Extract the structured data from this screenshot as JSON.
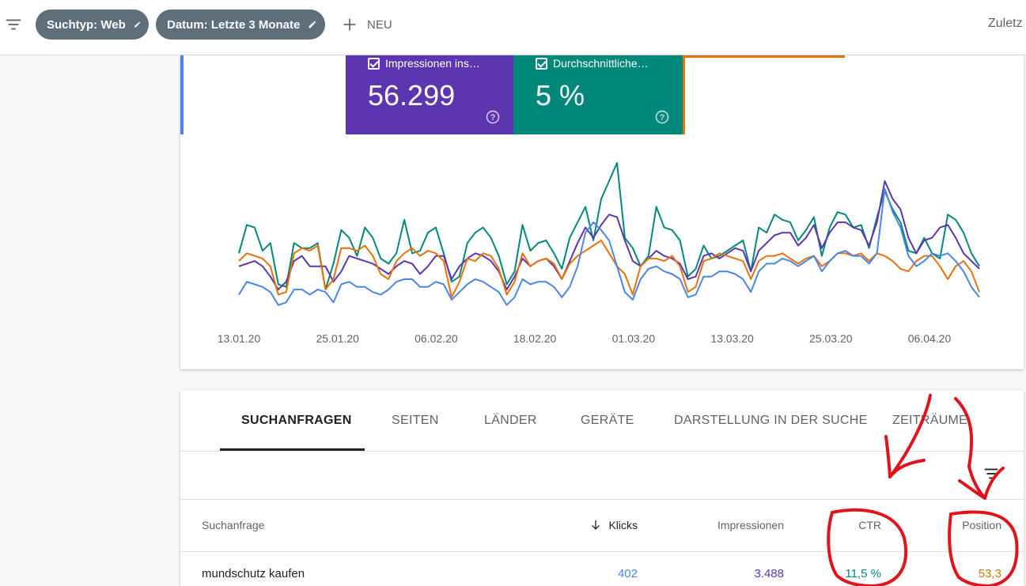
{
  "toolbar": {
    "chips": [
      {
        "label": "Suchtyp: Web"
      },
      {
        "label": "Datum: Letzte 3 Monate"
      }
    ],
    "new_label": "NEU",
    "right_label": "Zuletz",
    "icons": [
      "filter-icon",
      "edit-icon",
      "add-icon"
    ]
  },
  "metrics": [
    {
      "label": "Impressionen ins…",
      "value": "56.299",
      "color": "#5e35b1",
      "checked": true
    },
    {
      "label": "Durchschnittliche…",
      "value": "5 %",
      "color": "#00897b",
      "checked": true
    }
  ],
  "chart_data": {
    "type": "line",
    "x_tick_labels": [
      "13.01.20",
      "25.01.20",
      "06.02.20",
      "18.02.20",
      "01.03.20",
      "13.03.20",
      "25.03.20",
      "06.04.20"
    ],
    "series": [
      {
        "color": "#00897b",
        "values": [
          50,
          72,
          70,
          52,
          58,
          26,
          24,
          58,
          54,
          54,
          58,
          22,
          42,
          68,
          62,
          48,
          70,
          62,
          46,
          42,
          50,
          76,
          50,
          52,
          66,
          70,
          50,
          28,
          32,
          58,
          66,
          70,
          62,
          48,
          26,
          36,
          72,
          52,
          58,
          60,
          50,
          38,
          62,
          74,
          86,
          60,
          92,
          106,
          120,
          62,
          54,
          40,
          48,
          86,
          70,
          68,
          60,
          32,
          38,
          56,
          46,
          48,
          52,
          56,
          60,
          36,
          70,
          66,
          80,
          76,
          74,
          60,
          68,
          78,
          48,
          70,
          82,
          80,
          70,
          72,
          54,
          78,
          98,
          84,
          74,
          52,
          50,
          62,
          50,
          46,
          80,
          76,
          66,
          50,
          40
        ]
      },
      {
        "color": "#5e35b1",
        "values": [
          40,
          42,
          44,
          40,
          32,
          22,
          28,
          44,
          48,
          40,
          40,
          40,
          28,
          36,
          48,
          46,
          44,
          42,
          38,
          34,
          40,
          44,
          42,
          34,
          40,
          48,
          48,
          30,
          40,
          46,
          50,
          48,
          44,
          36,
          22,
          32,
          46,
          40,
          44,
          46,
          40,
          30,
          44,
          58,
          70,
          62,
          72,
          80,
          78,
          60,
          44,
          40,
          46,
          52,
          48,
          46,
          42,
          30,
          32,
          48,
          50,
          46,
          50,
          54,
          52,
          36,
          52,
          58,
          64,
          66,
          66,
          56,
          62,
          72,
          54,
          66,
          74,
          74,
          70,
          68,
          56,
          74,
          106,
          92,
          84,
          62,
          50,
          60,
          62,
          70,
          72,
          62,
          50,
          44,
          38
        ]
      },
      {
        "color": "#e8710a",
        "values": [
          44,
          50,
          48,
          46,
          40,
          18,
          20,
          50,
          54,
          52,
          56,
          22,
          30,
          54,
          54,
          52,
          56,
          48,
          34,
          30,
          44,
          50,
          54,
          48,
          52,
          50,
          44,
          16,
          28,
          46,
          44,
          50,
          48,
          38,
          18,
          28,
          50,
          40,
          44,
          46,
          42,
          30,
          42,
          48,
          52,
          56,
          60,
          50,
          40,
          34,
          18,
          40,
          46,
          46,
          44,
          48,
          40,
          20,
          24,
          44,
          46,
          50,
          48,
          46,
          44,
          30,
          44,
          48,
          48,
          50,
          46,
          42,
          46,
          48,
          40,
          44,
          50,
          50,
          48,
          50,
          44,
          50,
          48,
          44,
          38,
          36,
          44,
          48,
          48,
          40,
          30,
          40,
          44,
          36,
          20
        ]
      },
      {
        "color": "#4a86e8",
        "values": [
          18,
          28,
          26,
          24,
          20,
          10,
          12,
          22,
          22,
          18,
          22,
          20,
          12,
          26,
          28,
          24,
          24,
          20,
          18,
          22,
          28,
          30,
          30,
          24,
          24,
          28,
          26,
          14,
          20,
          26,
          30,
          28,
          24,
          20,
          10,
          16,
          30,
          26,
          28,
          28,
          24,
          16,
          24,
          40,
          66,
          74,
          68,
          60,
          40,
          20,
          14,
          30,
          38,
          40,
          36,
          34,
          30,
          16,
          18,
          32,
          32,
          36,
          36,
          34,
          30,
          20,
          36,
          42,
          42,
          46,
          44,
          40,
          44,
          48,
          36,
          44,
          50,
          52,
          48,
          48,
          42,
          50,
          100,
          82,
          70,
          48,
          40,
          44,
          50,
          48,
          50,
          44,
          36,
          24,
          16
        ]
      }
    ],
    "ylim": [
      0,
      120
    ]
  },
  "tabs": [
    {
      "label": "SUCHANFRAGEN",
      "active": true
    },
    {
      "label": "SEITEN"
    },
    {
      "label": "LÄNDER"
    },
    {
      "label": "GERÄTE"
    },
    {
      "label": "DARSTELLUNG IN DER SUCHE"
    },
    {
      "label": "ZEITRÄUME"
    }
  ],
  "table": {
    "headers": {
      "query": "Suchanfrage",
      "klicks": "Klicks",
      "impressions": "Impressionen",
      "ctr": "CTR",
      "position": "Position"
    },
    "rows": [
      {
        "query": "mundschutz kaufen",
        "klicks": "402",
        "impressions": "3.488",
        "ctr": "11,5 %",
        "position": "53,3"
      }
    ]
  }
}
